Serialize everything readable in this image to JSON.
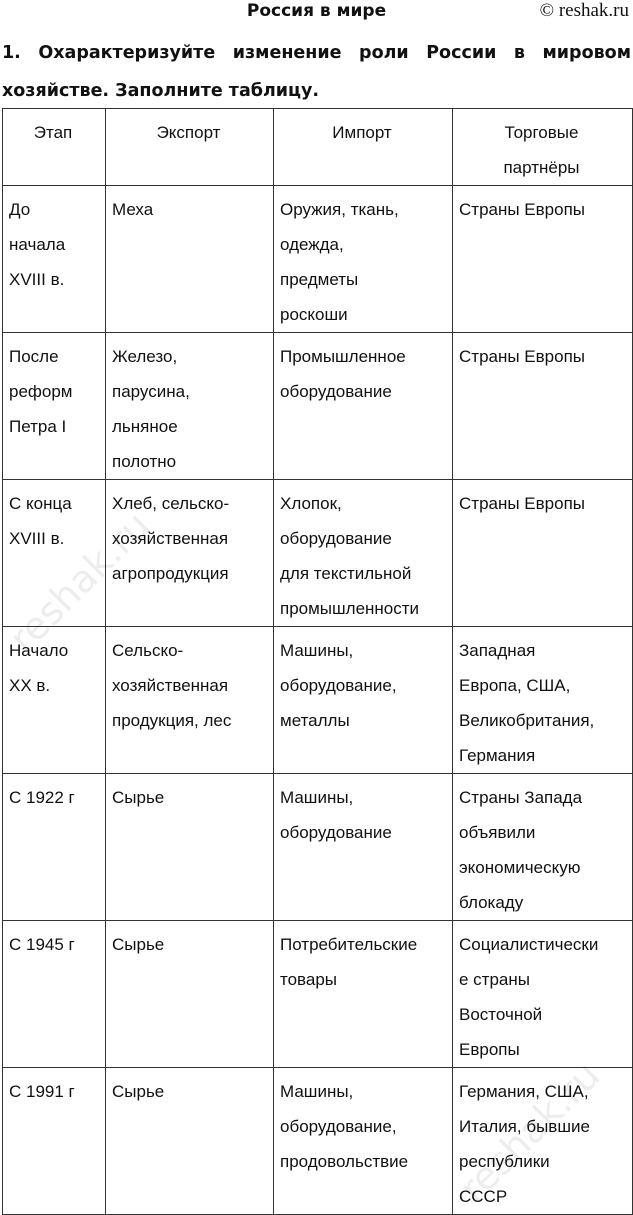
{
  "header": {
    "title": "Россия в мире",
    "copyright": "© reshak.ru"
  },
  "question": "1. Охарактеризуйте изменение роли России в мировом хозяйстве. Заполните таблицу.",
  "table": {
    "columns": [
      "Этап",
      "Экспорт",
      "Импорт",
      "Торговые\nпартнёры"
    ],
    "rows": [
      [
        "До\nначала\nXVIII в.",
        "Меха",
        "Оружия, ткань,\nодежда,\nпредметы\nроскоши",
        "Страны Европы"
      ],
      [
        "После\nреформ\nПетра I",
        "Железо,\nпарусина,\nльняное\nполотно",
        "Промышленное\nоборудование",
        "Страны Европы"
      ],
      [
        "С конца\nXVIII в.",
        "Хлеб, сельско-\nхозяйственная\nагропродукция",
        "Хлопок,\nоборудование\nдля текстильной\nпромышленности",
        "Страны Европы"
      ],
      [
        "Начало\nXX в.",
        "Сельско-\nхозяйственная\nпродукция, лес",
        "Машины,\nоборудование,\nметаллы",
        "Западная\nЕвропа, США,\nВеликобритания,\nГермания"
      ],
      [
        "С 1922 г",
        "Сырье",
        "Машины,\nоборудование",
        "Страны Запада\nобъявили\nэкономическую\nблокаду"
      ],
      [
        "С 1945 г",
        "Сырье",
        "Потребительские\nтовары",
        "Социалистически\nе страны\nВосточной\nЕвропы"
      ],
      [
        "С 1991 г",
        "Сырье",
        "Машины,\nоборудование,\nпродовольствие",
        "Германия, США,\nИталия, бывшие\nреспублики\nСССР"
      ]
    ]
  },
  "watermark": "reshak.ru"
}
